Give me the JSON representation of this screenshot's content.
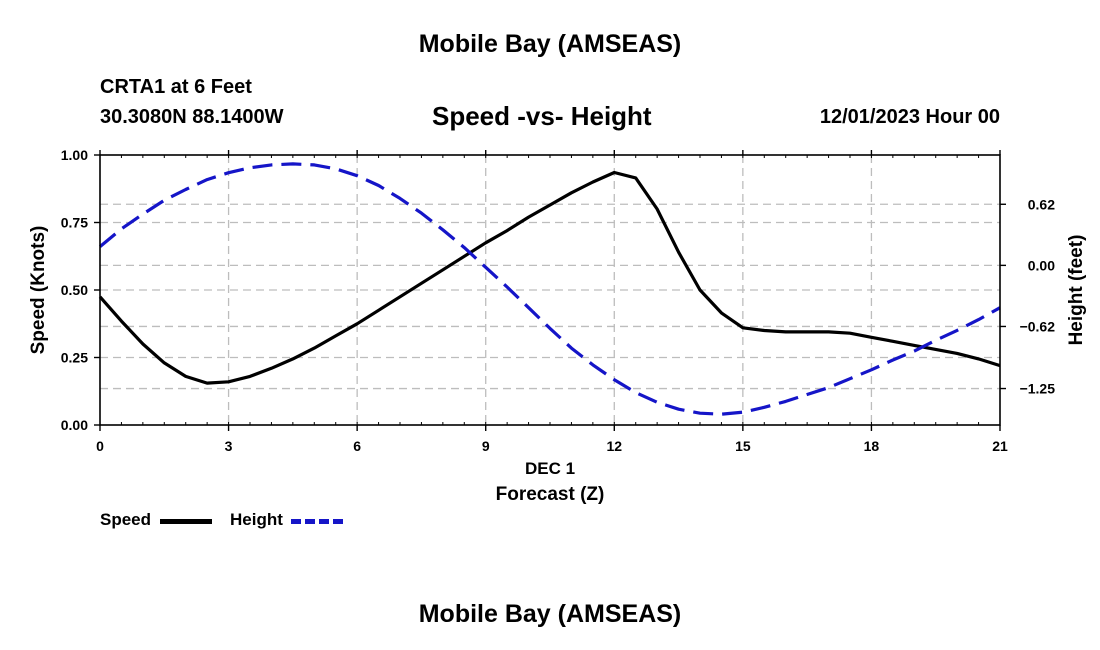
{
  "header": {
    "main_title": "Mobile Bay (AMSEAS)",
    "station": "CRTA1 at 6 Feet",
    "coords": "30.3080N  88.1400W",
    "subtitle": "Speed -vs- Height",
    "datetime": "12/01/2023 Hour 00"
  },
  "footer": {
    "repeat_title": "Mobile Bay (AMSEAS)"
  },
  "legend": {
    "speed_label": "Speed",
    "height_label": "Height"
  },
  "colors": {
    "speed": "#000000",
    "height": "#1515c8",
    "grid": "#bdbdbd"
  },
  "chart_data": {
    "type": "line",
    "title": "Speed -vs- Height",
    "xlabel": "Forecast (Z)",
    "xlabel_date": "DEC 1",
    "ylabel_left": "Speed (Knots)",
    "ylabel_right": "Height (feet)",
    "xlim": [
      0,
      21
    ],
    "ylim_left": [
      0,
      1.0
    ],
    "ylim_right": [
      -1.62,
      1.12
    ],
    "x_ticks": [
      0,
      3,
      6,
      9,
      12,
      15,
      18,
      21
    ],
    "x_tick_labels": [
      "0",
      "3",
      "6",
      "9",
      "12",
      "15",
      "18",
      "21"
    ],
    "y_left_ticks": [
      0,
      0.25,
      0.5,
      0.75,
      1.0
    ],
    "y_left_tick_labels": [
      "0.00",
      "0.25",
      "0.50",
      "0.75",
      "1.00"
    ],
    "y_right_ticks": [
      0.62,
      0.0,
      -0.62,
      -1.25
    ],
    "y_right_tick_labels": [
      "0.62",
      "0.00",
      "−0.62",
      "−1.25"
    ],
    "grid": true,
    "legend_position": "bottom-left",
    "series": [
      {
        "name": "Speed",
        "axis": "left",
        "style": "solid",
        "x": [
          0,
          0.5,
          1,
          1.5,
          2,
          2.5,
          3,
          3.5,
          4,
          4.5,
          5,
          5.5,
          6,
          6.5,
          7,
          7.5,
          8,
          8.5,
          9,
          9.5,
          10,
          10.5,
          11,
          11.5,
          12,
          12.5,
          13,
          13.5,
          14,
          14.5,
          15,
          15.5,
          16,
          16.5,
          17,
          17.5,
          18,
          18.5,
          19,
          19.5,
          20,
          20.5,
          21
        ],
        "values": [
          0.475,
          0.385,
          0.3,
          0.23,
          0.18,
          0.155,
          0.16,
          0.18,
          0.21,
          0.245,
          0.285,
          0.33,
          0.375,
          0.425,
          0.475,
          0.525,
          0.575,
          0.625,
          0.675,
          0.72,
          0.77,
          0.815,
          0.86,
          0.9,
          0.935,
          0.915,
          0.8,
          0.64,
          0.5,
          0.415,
          0.36,
          0.35,
          0.345,
          0.345,
          0.345,
          0.34,
          0.325,
          0.31,
          0.295,
          0.28,
          0.265,
          0.245,
          0.22
        ]
      },
      {
        "name": "Height",
        "axis": "right",
        "style": "dashed",
        "x": [
          0,
          0.5,
          1,
          1.5,
          2,
          2.5,
          3,
          3.5,
          4,
          4.5,
          5,
          5.5,
          6,
          6.5,
          7,
          7.5,
          8,
          8.5,
          9,
          9.5,
          10,
          10.5,
          11,
          11.5,
          12,
          12.5,
          13,
          13.5,
          14,
          14.5,
          15,
          15.5,
          16,
          16.5,
          17,
          17.5,
          18,
          18.5,
          19,
          19.5,
          20,
          20.5,
          21
        ],
        "values": [
          0.19,
          0.37,
          0.52,
          0.66,
          0.77,
          0.87,
          0.94,
          0.99,
          1.02,
          1.03,
          1.02,
          0.98,
          0.91,
          0.81,
          0.68,
          0.53,
          0.36,
          0.18,
          -0.02,
          -0.22,
          -0.43,
          -0.64,
          -0.84,
          -1.01,
          -1.16,
          -1.29,
          -1.39,
          -1.46,
          -1.5,
          -1.51,
          -1.49,
          -1.44,
          -1.38,
          -1.31,
          -1.24,
          -1.15,
          -1.06,
          -0.96,
          -0.87,
          -0.76,
          -0.66,
          -0.55,
          -0.43
        ]
      }
    ]
  }
}
